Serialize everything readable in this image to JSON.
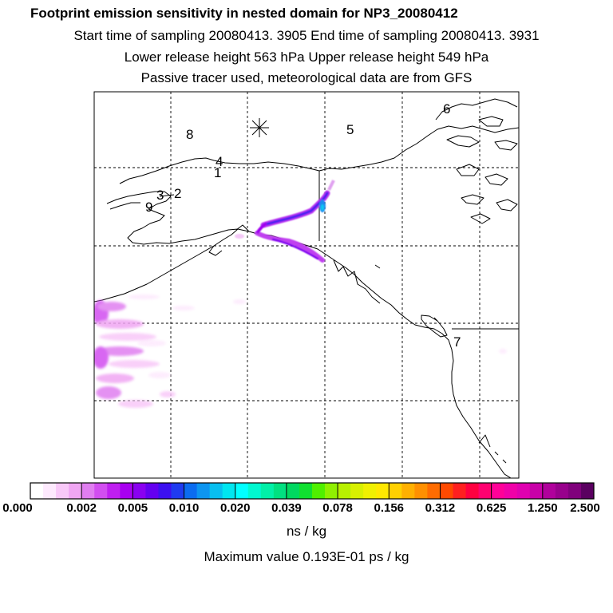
{
  "title": {
    "line1": "Footprint emission sensitivity in nested domain for NP3_20080412",
    "line2": "Start time of sampling 20080413.  3905     End time of sampling 20080413.  3931",
    "line3": "Lower release height  563 hPa       Upper release height  549 hPa",
    "line4": "Passive tracer used, meteorological data are from GFS"
  },
  "map": {
    "receptor_labels": [
      {
        "text": "8"
      },
      {
        "text": "5"
      },
      {
        "text": "6"
      },
      {
        "text": "4"
      },
      {
        "text": "1"
      },
      {
        "text": "3"
      },
      {
        "text": "2"
      },
      {
        "text": "9"
      },
      {
        "text": "7"
      }
    ],
    "release_marker": "asterisk-icon"
  },
  "colorbar": {
    "labels": [
      "0.000",
      "0.002",
      "0.005",
      "0.010",
      "0.020",
      "0.039",
      "0.078",
      "0.156",
      "0.312",
      "0.625",
      "1.250",
      "2.500"
    ],
    "colors": [
      [
        "#ffffff",
        "#fde9fd",
        "#f8c8f8",
        "#f0a6f3"
      ],
      [
        "#e07ef0",
        "#d24ef0",
        "#bf1ff0",
        "#a800f0"
      ],
      [
        "#8a00f0",
        "#6400f0",
        "#3c10f0",
        "#1f3bf0"
      ],
      [
        "#0b6cf0",
        "#0d95f0",
        "#08bff0",
        "#00e6f0"
      ],
      [
        "#00ffff",
        "#00f8d0",
        "#00f0a8",
        "#00e080"
      ],
      [
        "#00d860",
        "#10e030",
        "#50f000",
        "#90f000"
      ],
      [
        "#b8f000",
        "#d8f000",
        "#f0f000",
        "#ffe800"
      ],
      [
        "#ffd000",
        "#ffb000",
        "#ff9000",
        "#ff6c00"
      ],
      [
        "#ff4a00",
        "#ff2020",
        "#ff0040",
        "#ff0070"
      ],
      [
        "#ff0098",
        "#f000a8",
        "#e000b0",
        "#c800a8"
      ],
      [
        "#b0009c",
        "#98008c",
        "#80007c",
        "#5a0060"
      ]
    ],
    "units": "ns / kg",
    "max_value": "Maximum value  0.193E-01 ps / kg"
  }
}
